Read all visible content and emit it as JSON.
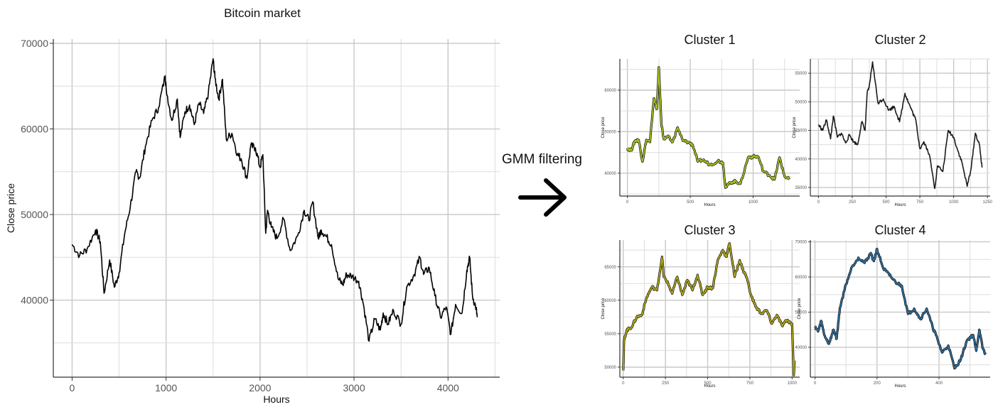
{
  "arrow_label": "GMM filtering",
  "colors": {
    "main": "#000000",
    "cluster1": "#a8c020",
    "cluster2": "#1a1a1a",
    "cluster3": "#b0a818",
    "cluster4": "#2e6e9c",
    "grid": "#cfcfcf"
  },
  "icons": {
    "arrow": "right-arrow-icon"
  },
  "chart_data": [
    {
      "type": "line",
      "title": "Bitcoin market",
      "xlabel": "Hours",
      "ylabel": "Close price",
      "xlim": [
        -200,
        4550
      ],
      "ylim": [
        31000,
        70500
      ],
      "xticks": [
        0,
        1000,
        2000,
        3000,
        4000
      ],
      "xtick_labels": [
        "0",
        "1000",
        "2000",
        "3000",
        "4000"
      ],
      "yticks": [
        40000,
        50000,
        60000,
        70000
      ],
      "ytick_labels": [
        "40000",
        "50000",
        "60000",
        "70000"
      ],
      "grid": true,
      "x": [
        0,
        80,
        160,
        250,
        300,
        340,
        400,
        450,
        500,
        560,
        620,
        680,
        720,
        780,
        850,
        920,
        990,
        1000,
        1060,
        1120,
        1150,
        1200,
        1250,
        1300,
        1350,
        1400,
        1450,
        1500,
        1520,
        1560,
        1600,
        1640,
        1700,
        1760,
        1800,
        1860,
        1900,
        1950,
        2000,
        2030,
        2060,
        2080,
        2120,
        2180,
        2250,
        2320,
        2400,
        2470,
        2520,
        2560,
        2620,
        2650,
        2700,
        2760,
        2830,
        2880,
        2920,
        2980,
        3050,
        3100,
        3160,
        3220,
        3280,
        3310,
        3360,
        3420,
        3500,
        3560,
        3640,
        3700,
        3740,
        3800,
        3860,
        3920,
        3980,
        4030,
        4080,
        4150,
        4200,
        4230,
        4260,
        4300,
        4310
      ],
      "y": [
        46500,
        45200,
        46000,
        48200,
        46800,
        40800,
        44700,
        41500,
        43200,
        47800,
        51000,
        55000,
        54300,
        58000,
        61000,
        62500,
        66200,
        64800,
        61000,
        63500,
        59000,
        62000,
        62800,
        60500,
        63000,
        61800,
        64200,
        68200,
        66000,
        63500,
        65800,
        58800,
        59500,
        57000,
        56500,
        54200,
        58000,
        57800,
        55500,
        57000,
        47800,
        50500,
        48500,
        47200,
        49500,
        45800,
        47500,
        50500,
        49300,
        51500,
        47200,
        48200,
        47500,
        46500,
        42500,
        41800,
        43000,
        42800,
        42200,
        39500,
        35200,
        37800,
        36500,
        38500,
        37200,
        38800,
        37200,
        41500,
        43000,
        45000,
        43000,
        43800,
        40500,
        38000,
        39200,
        36000,
        39500,
        38500,
        43500,
        45000,
        40500,
        39000,
        38000
      ]
    },
    {
      "type": "line",
      "title": "Cluster 1",
      "xlabel": "Hours",
      "ylabel": "Close price",
      "xlim": [
        -60,
        1370
      ],
      "ylim": [
        34500,
        67500
      ],
      "xticks": [
        0,
        500,
        1000
      ],
      "xtick_labels": [
        "0",
        "500",
        "1000"
      ],
      "yticks": [
        40000,
        50000,
        60000
      ],
      "ytick_labels": [
        "40000",
        "50000",
        "60000"
      ],
      "grid": true,
      "series": [
        {
          "color": "#a8c020"
        }
      ],
      "x": [
        0,
        30,
        60,
        90,
        120,
        150,
        180,
        210,
        235,
        250,
        270,
        290,
        320,
        360,
        400,
        440,
        480,
        520,
        560,
        600,
        660,
        720,
        760,
        780,
        820,
        860,
        900,
        960,
        1000,
        1040,
        1080,
        1130,
        1170,
        1210,
        1250,
        1290
      ],
      "y": [
        46000,
        45500,
        47800,
        48000,
        42800,
        48000,
        47500,
        58000,
        55500,
        65500,
        52000,
        48200,
        48800,
        47500,
        51000,
        47800,
        47500,
        46800,
        42800,
        43200,
        42000,
        43000,
        42500,
        36500,
        37800,
        38000,
        37500,
        43800,
        44000,
        44000,
        40500,
        39500,
        38500,
        43800,
        39200,
        38500
      ]
    },
    {
      "type": "line",
      "title": "Cluster 2",
      "xlabel": "Hours",
      "ylabel": "Close price",
      "xlim": [
        -60,
        1270
      ],
      "ylim": [
        33500,
        57500
      ],
      "xticks": [
        0,
        250,
        500,
        750,
        1000,
        1250
      ],
      "xtick_labels": [
        "0",
        "250",
        "500",
        "750",
        "1000",
        "1250"
      ],
      "yticks": [
        35000,
        40000,
        45000,
        50000,
        55000
      ],
      "ytick_labels": [
        "35000",
        "40000",
        "45000",
        "50000",
        "55000"
      ],
      "grid": true,
      "series": [
        {
          "color": "#1a1a1a"
        }
      ],
      "x": [
        0,
        30,
        60,
        90,
        110,
        140,
        170,
        200,
        230,
        260,
        290,
        320,
        345,
        360,
        375,
        400,
        440,
        480,
        520,
        560,
        600,
        640,
        660,
        690,
        720,
        750,
        780,
        820,
        860,
        880,
        920,
        960,
        1000,
        1030,
        1060,
        1100,
        1130,
        1160,
        1190,
        1210
      ],
      "y": [
        46000,
        45000,
        46800,
        43500,
        47500,
        43800,
        44500,
        42800,
        44200,
        43000,
        42500,
        46500,
        45000,
        51500,
        52500,
        57000,
        49800,
        50500,
        48500,
        49200,
        46500,
        51500,
        50200,
        48500,
        46800,
        41800,
        43000,
        40800,
        34800,
        38800,
        37800,
        45000,
        43800,
        41500,
        39500,
        35200,
        38500,
        44500,
        42500,
        38500
      ]
    },
    {
      "type": "line",
      "title": "Cluster 3",
      "xlabel": "Hours",
      "ylabel": "Close price",
      "xlim": [
        -20,
        1045
      ],
      "ylim": [
        48500,
        69000
      ],
      "xticks": [
        0,
        250,
        500,
        750,
        1000
      ],
      "xtick_labels": [
        "0",
        "250",
        "500",
        "750",
        "1000"
      ],
      "yticks": [
        50000,
        55000,
        60000,
        65000
      ],
      "ytick_labels": [
        "50000",
        "55000",
        "60000",
        "65000"
      ],
      "grid": true,
      "series": [
        {
          "color": "#b0a818"
        }
      ],
      "x": [
        0,
        5,
        20,
        50,
        80,
        110,
        140,
        170,
        200,
        230,
        240,
        260,
        290,
        320,
        350,
        380,
        410,
        440,
        470,
        500,
        530,
        560,
        590,
        610,
        630,
        660,
        690,
        710,
        730,
        760,
        790,
        820,
        850,
        880,
        910,
        940,
        970,
        1000,
        1010,
        1015
      ],
      "y": [
        49500,
        54000,
        55500,
        56000,
        57500,
        57800,
        60500,
        62000,
        61500,
        66500,
        63500,
        62800,
        61000,
        63500,
        60800,
        63000,
        61500,
        63800,
        60800,
        62000,
        61800,
        66000,
        67500,
        66500,
        68500,
        63500,
        66000,
        64500,
        63500,
        60500,
        58800,
        58000,
        58500,
        56500,
        57800,
        56200,
        57000,
        56500,
        48800,
        51000
      ]
    },
    {
      "type": "line",
      "title": "Cluster 4",
      "xlabel": "Hours",
      "ylabel": "Close price",
      "xlim": [
        -15,
        565
      ],
      "ylim": [
        31500,
        70500
      ],
      "xticks": [
        0,
        200,
        400
      ],
      "xtick_labels": [
        "0",
        "200",
        "400"
      ],
      "yticks": [
        40000,
        50000,
        60000,
        70000
      ],
      "ytick_labels": [
        "40000",
        "50000",
        "60000",
        "70000"
      ],
      "grid": true,
      "series": [
        {
          "color": "#2e6e9c"
        }
      ],
      "x": [
        0,
        10,
        20,
        30,
        45,
        60,
        70,
        80,
        100,
        120,
        140,
        160,
        180,
        190,
        200,
        220,
        240,
        260,
        280,
        300,
        320,
        340,
        360,
        380,
        390,
        410,
        430,
        450,
        470,
        490,
        510,
        520,
        530,
        540,
        550
      ],
      "y": [
        46000,
        44500,
        47500,
        43500,
        41000,
        45000,
        42500,
        51000,
        58000,
        63000,
        65500,
        64000,
        66800,
        64500,
        68000,
        62500,
        60500,
        58500,
        57500,
        49500,
        51000,
        48000,
        51000,
        45500,
        43500,
        38500,
        40500,
        34000,
        36500,
        42000,
        43500,
        39000,
        45000,
        40000,
        38000
      ]
    }
  ]
}
